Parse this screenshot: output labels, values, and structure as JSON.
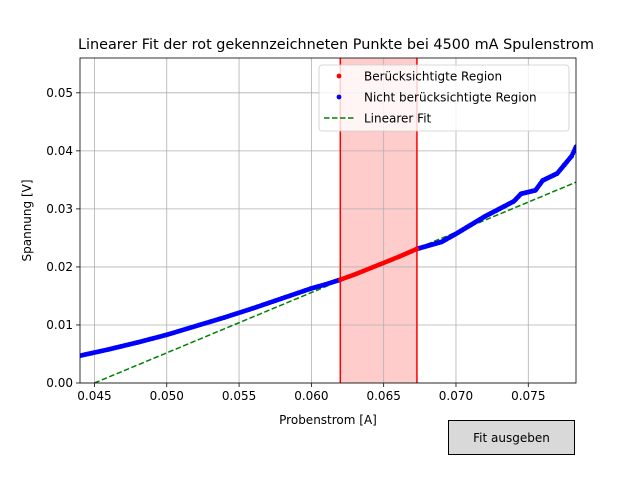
{
  "chart_data": {
    "type": "scatter",
    "title": "Linearer Fit der rot gekennzeichneten Punkte bei 4500 mA Spulenstrom",
    "xlabel": "Probenstrom [A]",
    "ylabel": "Spannung [V]",
    "xlim": [
      0.044,
      0.0783
    ],
    "ylim": [
      0,
      0.056
    ],
    "xticks": [
      "0.045",
      "0.050",
      "0.055",
      "0.060",
      "0.065",
      "0.070",
      "0.075"
    ],
    "yticks": [
      "0.00",
      "0.01",
      "0.02",
      "0.03",
      "0.04",
      "0.05"
    ],
    "grid": true,
    "legend_position": "top-right",
    "region": {
      "x_start": 0.062,
      "x_end": 0.0673,
      "color": "#ff0000"
    },
    "series": [
      {
        "name": "Nicht berücksichtigte Region",
        "color": "#0000ff",
        "x": [
          0.044,
          0.046,
          0.048,
          0.05,
          0.052,
          0.054,
          0.056,
          0.058,
          0.06,
          0.061,
          0.062,
          0.0673,
          0.068,
          0.069,
          0.07,
          0.071,
          0.072,
          0.073,
          0.074,
          0.0745,
          0.0755,
          0.076,
          0.077,
          0.0775,
          0.078,
          0.0783
        ],
        "y": [
          0.0047,
          0.0058,
          0.007,
          0.0083,
          0.0098,
          0.0113,
          0.0129,
          0.0146,
          0.0163,
          0.017,
          0.0178,
          0.0231,
          0.0236,
          0.0243,
          0.0257,
          0.0272,
          0.0287,
          0.03,
          0.0313,
          0.0326,
          0.0332,
          0.0349,
          0.0361,
          0.0376,
          0.0391,
          0.0407
        ]
      },
      {
        "name": "Berücksichtigte Region",
        "color": "#ff0000",
        "x": [
          0.062,
          0.063,
          0.064,
          0.065,
          0.066,
          0.0673
        ],
        "y": [
          0.0178,
          0.0187,
          0.0197,
          0.0207,
          0.0217,
          0.0231
        ]
      },
      {
        "name": "Linearer Fit",
        "color": "#008000",
        "style": "dashed",
        "x": [
          0.045,
          0.0783
        ],
        "y": [
          0.0,
          0.0346
        ]
      }
    ]
  },
  "button": {
    "label": "Fit ausgeben"
  }
}
